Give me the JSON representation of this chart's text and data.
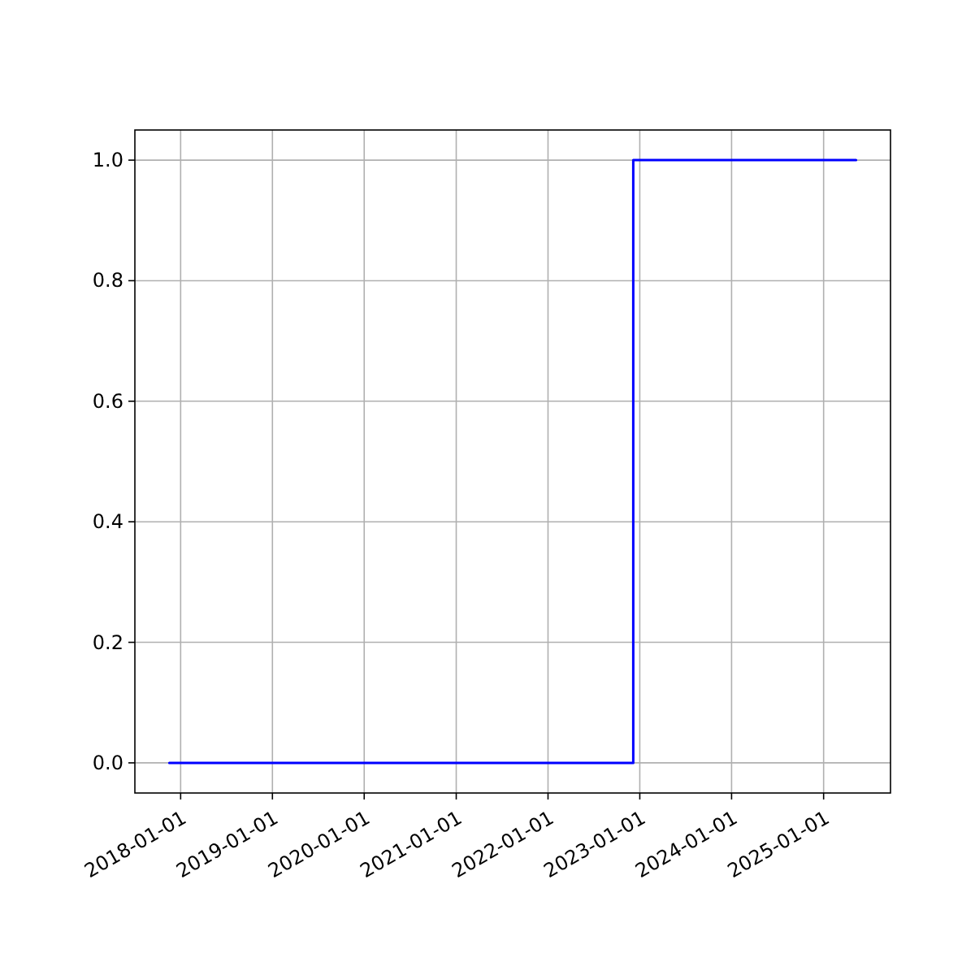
{
  "chart_data": {
    "type": "step",
    "x": [
      "2017-11-17",
      "2022-12-06",
      "2025-05-10"
    ],
    "series": [
      {
        "color": "#0000ff",
        "values": [
          0,
          1,
          1
        ]
      }
    ],
    "xlim": [
      "2017-07-03",
      "2025-09-24"
    ],
    "xticks": [
      "2018-01-01",
      "2019-01-01",
      "2020-01-01",
      "2021-01-01",
      "2022-01-01",
      "2023-01-01",
      "2024-01-01",
      "2025-01-01"
    ],
    "ylim": [
      -0.05,
      1.05
    ],
    "yticks": [
      {
        "value": 0,
        "label": "0.0"
      },
      {
        "value": 0.2,
        "label": "0.2"
      },
      {
        "value": 0.4,
        "label": "0.4"
      },
      {
        "value": 0.6,
        "label": "0.6"
      },
      {
        "value": 0.8,
        "label": "0.8"
      },
      {
        "value": 1,
        "label": "1.0"
      }
    ],
    "grid": true
  }
}
